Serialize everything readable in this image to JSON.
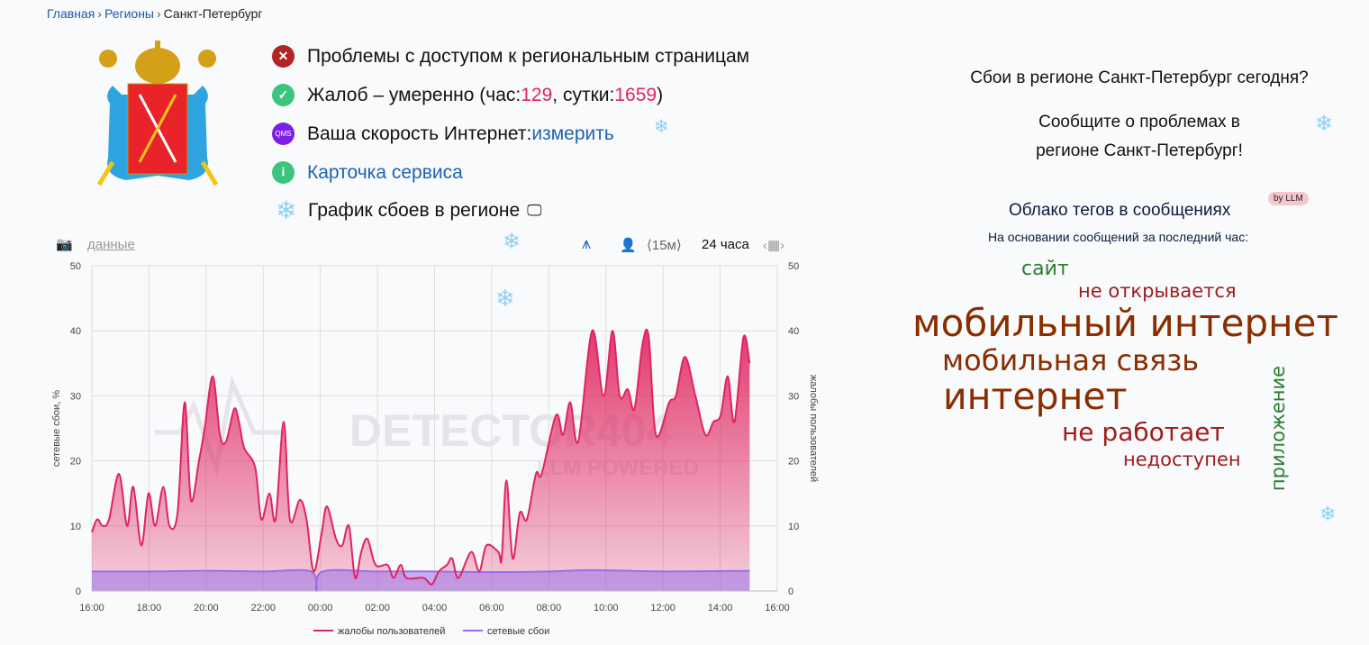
{
  "breadcrumb": {
    "items": [
      "Главная",
      "Регионы",
      "Санкт-Петербург"
    ]
  },
  "status": {
    "access": "Проблемы с доступом к региональным страницам",
    "complaints_prefix": "Жалоб – умеренно (час: ",
    "hour": "129",
    "mid": ", сутки: ",
    "day": "1659",
    "suffix": ")",
    "speed_label": "Ваша скорость Интернет: ",
    "speed_link": "измерить",
    "qms": "QMS",
    "card_link": "Карточка сервиса",
    "chart_heading": "График сбоев в регионе"
  },
  "toolbar": {
    "data_link": "данные",
    "interval": "⟨15м⟩",
    "range": "24 часа"
  },
  "right": {
    "question": "Сбои в регионе Санкт-Петербург сегодня?",
    "report_line1": "Сообщите о проблемах в",
    "report_line2": "регионе Санкт-Петербург!",
    "cloud_title": "Облако тегов в сообщениях",
    "llm_badge": "by LLM",
    "cloud_sub": "На основании сообщений за последний час:",
    "tags": [
      {
        "text": "сайт",
        "color": "#2e7d32"
      },
      {
        "text": "не открывается",
        "color": "#a11c1c"
      },
      {
        "text": "мобильный интернет",
        "color": "#8a2e00"
      },
      {
        "text": "мобильная связь",
        "color": "#8a2e00"
      },
      {
        "text": "интернет",
        "color": "#8a2e00"
      },
      {
        "text": "не работает",
        "color": "#a11c1c"
      },
      {
        "text": "недоступен",
        "color": "#a11c1c"
      },
      {
        "text": "приложение",
        "color": "#2e7d32"
      }
    ]
  },
  "colors": {
    "complaints": "#e0245e",
    "network": "#9b6ee8",
    "accent": "#1e63b0"
  },
  "chart_data": {
    "type": "area",
    "ylabel_left": "сетевые сбои, %",
    "ylabel_right": "жалобы пользователей",
    "ylim": [
      0,
      50
    ],
    "yticks": [
      "0",
      "10",
      "20",
      "30",
      "40",
      "50"
    ],
    "xticks": [
      "16:00",
      "18:00",
      "20:00",
      "22:00",
      "00:00",
      "02:00",
      "04:00",
      "06:00",
      "08:00",
      "10:00",
      "12:00",
      "14:00",
      "16:00"
    ],
    "grid": true,
    "legend": "bottom",
    "watermark": "DETECTOR404 LLM POWERED",
    "series": [
      {
        "name": "жалобы пользователей",
        "points": [
          [
            "16:00",
            9
          ],
          [
            "16:11",
            11
          ],
          [
            "16:23",
            10
          ],
          [
            "16:36",
            11
          ],
          [
            "16:57",
            18
          ],
          [
            "17:14",
            10
          ],
          [
            "17:27",
            16
          ],
          [
            "17:44",
            7
          ],
          [
            "17:59",
            15
          ],
          [
            "18:13",
            10
          ],
          [
            "18:30",
            16
          ],
          [
            "18:43",
            10
          ],
          [
            "19:00",
            12
          ],
          [
            "19:15",
            29
          ],
          [
            "19:28",
            14
          ],
          [
            "19:45",
            20
          ],
          [
            "19:57",
            25
          ],
          [
            "20:14",
            33
          ],
          [
            "20:29",
            24
          ],
          [
            "20:42",
            23
          ],
          [
            "20:59",
            28
          ],
          [
            "21:09",
            26
          ],
          [
            "21:20",
            22
          ],
          [
            "21:43",
            19
          ],
          [
            "21:56",
            11
          ],
          [
            "22:13",
            15
          ],
          [
            "22:26",
            11
          ],
          [
            "22:43",
            26
          ],
          [
            "22:56",
            11
          ],
          [
            "23:17",
            14
          ],
          [
            "23:31",
            11
          ],
          [
            "23:46",
            3
          ],
          [
            "00:03",
            9
          ],
          [
            "00:14",
            13
          ],
          [
            "00:33",
            8
          ],
          [
            "00:46",
            7
          ],
          [
            "01:00",
            10
          ],
          [
            "01:13",
            2
          ],
          [
            "01:26",
            6
          ],
          [
            "01:39",
            8
          ],
          [
            "01:56",
            4
          ],
          [
            "02:21",
            4
          ],
          [
            "02:34",
            2
          ],
          [
            "02:49",
            4
          ],
          [
            "03:01",
            2
          ],
          [
            "03:37",
            2
          ],
          [
            "03:54",
            1
          ],
          [
            "04:09",
            3
          ],
          [
            "04:26",
            4
          ],
          [
            "04:37",
            5
          ],
          [
            "04:50",
            2
          ],
          [
            "05:17",
            6
          ],
          [
            "05:34",
            3
          ],
          [
            "05:49",
            7
          ],
          [
            "06:14",
            6
          ],
          [
            "06:21",
            5
          ],
          [
            "06:31",
            17
          ],
          [
            "06:44",
            5
          ],
          [
            "06:59",
            12
          ],
          [
            "07:14",
            11
          ],
          [
            "07:33",
            18
          ],
          [
            "07:45",
            18
          ],
          [
            "08:15",
            27
          ],
          [
            "08:30",
            24
          ],
          [
            "08:45",
            29
          ],
          [
            "09:02",
            23
          ],
          [
            "09:31",
            40
          ],
          [
            "09:55",
            30
          ],
          [
            "10:14",
            40
          ],
          [
            "10:29",
            30
          ],
          [
            "10:46",
            31
          ],
          [
            "11:00",
            28
          ],
          [
            "11:17",
            38
          ],
          [
            "11:30",
            39
          ],
          [
            "11:45",
            24
          ],
          [
            "12:13",
            29
          ],
          [
            "12:27",
            30
          ],
          [
            "12:46",
            36
          ],
          [
            "13:08",
            30
          ],
          [
            "13:29",
            24
          ],
          [
            "13:46",
            26
          ],
          [
            "14:01",
            27
          ],
          [
            "14:16",
            33
          ],
          [
            "14:30",
            26
          ],
          [
            "14:49",
            39
          ],
          [
            "15:02",
            35
          ]
        ]
      },
      {
        "name": "сетевые сбои",
        "points": [
          [
            "16:00",
            3
          ],
          [
            "18:00",
            3
          ],
          [
            "20:00",
            3.1
          ],
          [
            "22:00",
            3
          ],
          [
            "23:40",
            3
          ],
          [
            "23:52",
            0
          ],
          [
            "00:05",
            3
          ],
          [
            "02:00",
            3
          ],
          [
            "04:00",
            3
          ],
          [
            "06:00",
            2.9
          ],
          [
            "08:00",
            3
          ],
          [
            "09:30",
            3.2
          ],
          [
            "12:00",
            3
          ],
          [
            "15:02",
            3.1
          ]
        ]
      }
    ]
  }
}
